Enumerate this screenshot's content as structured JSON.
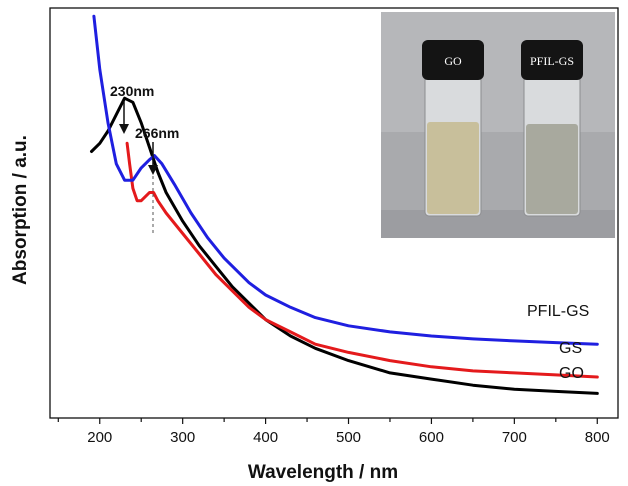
{
  "chart_data": {
    "type": "line",
    "xlabel": "Wavelength / nm",
    "ylabel": "Absorption / a.u.",
    "xlim": [
      140,
      825
    ],
    "ylim": [
      0,
      1.0
    ],
    "x_ticks": [
      200,
      300,
      400,
      500,
      600,
      700,
      800
    ],
    "y_ticks_visible": false,
    "grid": false,
    "series": [
      {
        "name": "GO",
        "color": "#000000",
        "x": [
          190,
          200,
          210,
          220,
          230,
          240,
          250,
          260,
          270,
          280,
          300,
          320,
          340,
          360,
          380,
          400,
          430,
          460,
          500,
          550,
          600,
          650,
          700,
          750,
          800
        ],
        "y": [
          0.65,
          0.67,
          0.7,
          0.74,
          0.78,
          0.77,
          0.72,
          0.66,
          0.6,
          0.55,
          0.48,
          0.42,
          0.37,
          0.32,
          0.28,
          0.24,
          0.2,
          0.17,
          0.14,
          0.11,
          0.095,
          0.08,
          0.07,
          0.065,
          0.06
        ]
      },
      {
        "name": "GS",
        "color": "#e41a1c",
        "x": [
          233,
          236,
          240,
          245,
          250,
          255,
          260,
          265,
          270,
          280,
          300,
          320,
          340,
          360,
          380,
          400,
          430,
          460,
          500,
          550,
          600,
          650,
          700,
          750,
          800
        ],
        "y": [
          0.67,
          0.62,
          0.56,
          0.53,
          0.53,
          0.54,
          0.55,
          0.55,
          0.53,
          0.5,
          0.45,
          0.4,
          0.35,
          0.31,
          0.27,
          0.24,
          0.21,
          0.18,
          0.16,
          0.14,
          0.125,
          0.115,
          0.11,
          0.105,
          0.1
        ]
      },
      {
        "name": "PFIL-GS",
        "color": "#1f1fe0",
        "x": [
          193,
          200,
          210,
          220,
          230,
          240,
          250,
          260,
          266,
          275,
          290,
          310,
          330,
          350,
          380,
          400,
          430,
          460,
          500,
          550,
          600,
          650,
          700,
          750,
          800
        ],
        "y": [
          0.98,
          0.85,
          0.72,
          0.62,
          0.58,
          0.58,
          0.61,
          0.63,
          0.64,
          0.62,
          0.57,
          0.5,
          0.44,
          0.39,
          0.33,
          0.3,
          0.27,
          0.245,
          0.225,
          0.21,
          0.2,
          0.193,
          0.188,
          0.184,
          0.18
        ]
      }
    ],
    "series_labels": {
      "go": "GO",
      "gs": "GS",
      "pfil": "PFIL-GS"
    },
    "annotations": [
      {
        "text": "230nm",
        "x": 230,
        "y": 0.78
      },
      {
        "text": "266nm",
        "x": 266,
        "y": 0.64
      }
    ],
    "inset": {
      "left_cap": "GO",
      "right_cap": "PFIL-GS",
      "left_liquid_color": "#c8bf9b",
      "right_liquid_color": "#a8a99e"
    }
  }
}
